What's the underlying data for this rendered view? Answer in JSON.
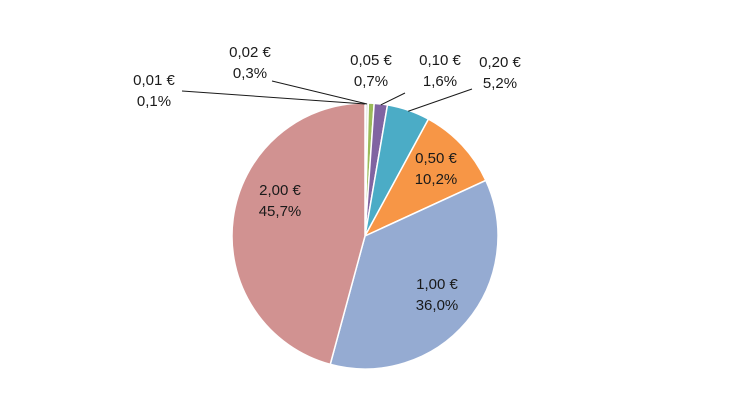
{
  "chart_data": {
    "type": "pie",
    "title": "",
    "legend": "none",
    "slices": [
      {
        "category": "0,01 €",
        "percent_label": "0,1%",
        "value": 0.1,
        "color": "#4472C4"
      },
      {
        "category": "0,02 €",
        "percent_label": "0,3%",
        "value": 0.3,
        "color": "#D9D9D9"
      },
      {
        "category": "0,05 €",
        "percent_label": "0,7%",
        "value": 0.7,
        "color": "#9BBB59"
      },
      {
        "category": "0,10 €",
        "percent_label": "1,6%",
        "value": 1.6,
        "color": "#8064A2"
      },
      {
        "category": "0,20 €",
        "percent_label": "5,2%",
        "value": 5.2,
        "color": "#4BACC6"
      },
      {
        "category": "0,50 €",
        "percent_label": "10,2%",
        "value": 10.2,
        "color": "#F79646"
      },
      {
        "category": "1,00 €",
        "percent_label": "36,0%",
        "value": 36.0,
        "color": "#95ABD2"
      },
      {
        "category": "2,00 €",
        "percent_label": "45,7%",
        "value": 45.7,
        "color": "#D19291"
      }
    ]
  }
}
